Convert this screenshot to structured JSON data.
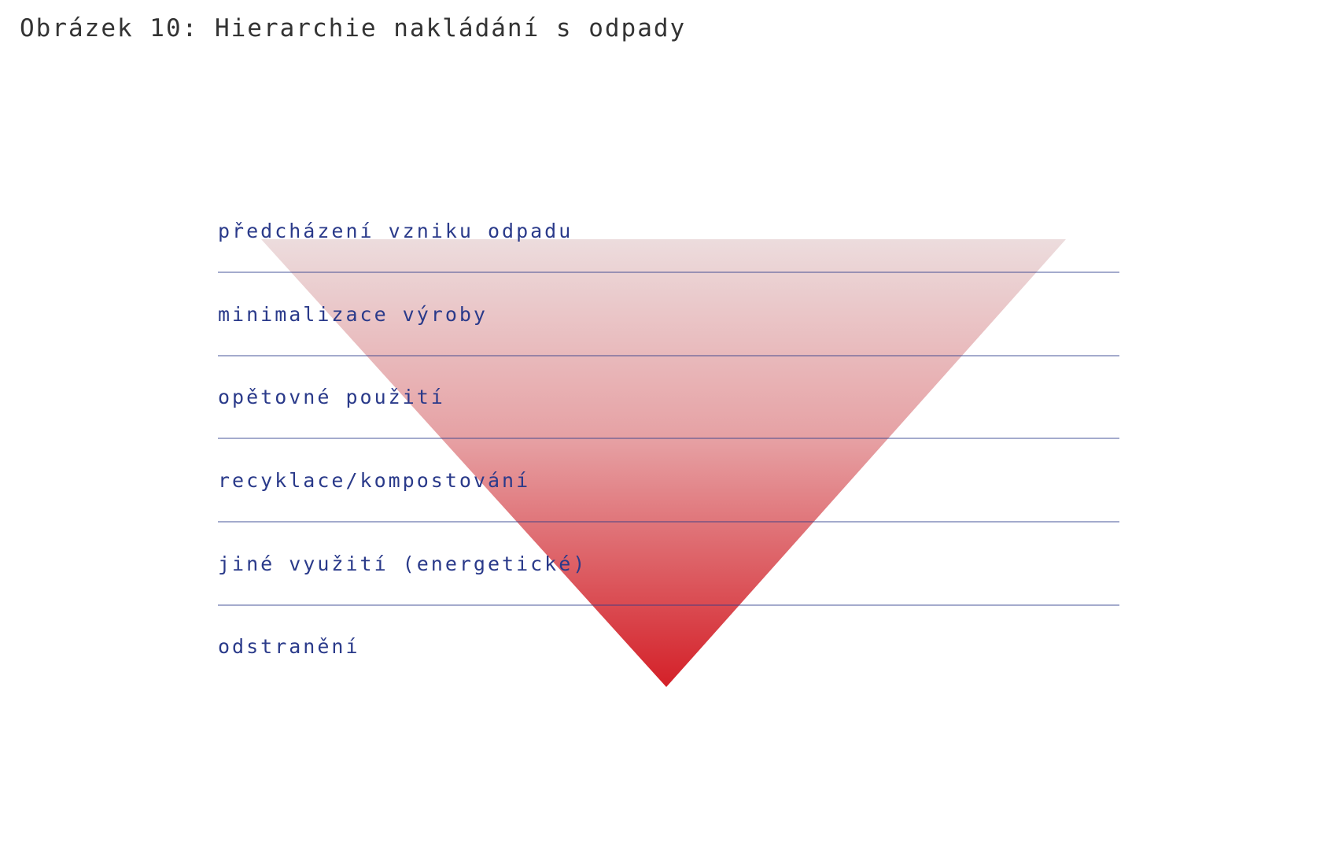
{
  "title": "Obrázek 10: Hierarchie nakládání s odpady",
  "colors": {
    "label_text": "#2a3a8a",
    "divider_line": "#2a3a8a",
    "gradient_top": "#ecdcdd",
    "gradient_bottom": "#d42028",
    "title_text": "#333333"
  },
  "levels": [
    {
      "label": "předcházení vzniku odpadu"
    },
    {
      "label": "minimalizace výroby"
    },
    {
      "label": "opětovné použití"
    },
    {
      "label": "recyklace/kompostování"
    },
    {
      "label": "jiné využití (energetické)"
    },
    {
      "label": "odstranění"
    }
  ]
}
